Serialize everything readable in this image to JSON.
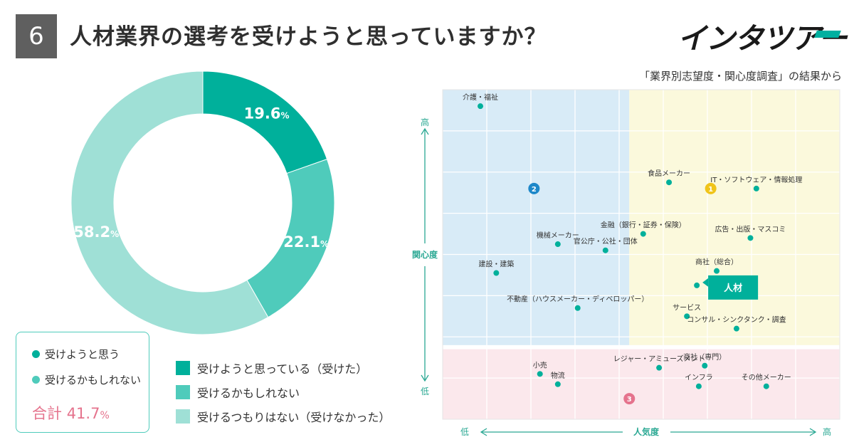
{
  "header": {
    "number": "6",
    "title": "人材業界の選考を受けようと思っていますか？",
    "logo_text": "インタツアー",
    "subtitle": "「業界別志望度・関心度調査」の結果から"
  },
  "summary_box": {
    "items": [
      {
        "label": "受けようと思う",
        "color": "#00b09b"
      },
      {
        "label": "受けるかもしれない",
        "color": "#4fcbbb"
      }
    ],
    "total_label": "合計",
    "total_value": "41.7",
    "total_unit": "%"
  },
  "chart_data": [
    {
      "type": "pie",
      "donut": true,
      "categories": [
        "受けようと思っている（受けた）",
        "受けるかもしれない",
        "受けるつもりはない（受けなかった）"
      ],
      "values": [
        19.6,
        22.1,
        58.2
      ],
      "colors": [
        "#00b09b",
        "#4fcbbb",
        "#9fe0d6"
      ],
      "value_unit": "%",
      "legend_position": "bottom"
    },
    {
      "type": "scatter",
      "xlabel": "人気度",
      "ylabel": "関心度",
      "x_low_label": "低",
      "x_high_label": "高",
      "y_low_label": "低",
      "y_high_label": "高",
      "xlim": [
        0,
        10
      ],
      "ylim": [
        0,
        8
      ],
      "grid": true,
      "zones": [
        {
          "id": "2",
          "x": [
            0,
            4.7
          ],
          "y": [
            1.8,
            8
          ],
          "color": "#d8ebf7",
          "badge_color": "#1e88c9",
          "badge_at": [
            2.3,
            5.6
          ]
        },
        {
          "id": "1",
          "x": [
            4.7,
            10
          ],
          "y": [
            1.8,
            8
          ],
          "color": "#fbf9dc",
          "badge_color": "#f0c419",
          "badge_at": [
            6.75,
            5.6
          ]
        },
        {
          "id": "3",
          "x": [
            0,
            10
          ],
          "y": [
            0,
            1.7
          ],
          "color": "#fbe8ec",
          "badge_color": "#e5738d",
          "badge_at": [
            4.7,
            0.5
          ]
        }
      ],
      "points": [
        {
          "label": "介護・福祉",
          "x": 0.95,
          "y": 7.6
        },
        {
          "label": "食品メーカー",
          "x": 5.7,
          "y": 5.75
        },
        {
          "label": "IT・ソフトウェア・情報処理",
          "x": 7.9,
          "y": 5.6
        },
        {
          "label": "金融（銀行・証券・保険）",
          "x": 5.05,
          "y": 4.5
        },
        {
          "label": "広告・出版・マスコミ",
          "x": 7.75,
          "y": 4.4
        },
        {
          "label": "機械メーカー",
          "x": 2.9,
          "y": 4.25
        },
        {
          "label": "官公庁・公社・団体",
          "x": 4.1,
          "y": 4.1
        },
        {
          "label": "商社（総合）",
          "x": 6.9,
          "y": 3.6
        },
        {
          "label": "建設・建築",
          "x": 1.35,
          "y": 3.55
        },
        {
          "label": "人材",
          "x": 6.4,
          "y": 3.25,
          "highlight": true
        },
        {
          "label": "不動産（ハウスメーカー・ディベロッパー）",
          "x": 3.4,
          "y": 2.7
        },
        {
          "label": "サービス",
          "x": 6.15,
          "y": 2.5
        },
        {
          "label": "コンサル・シンクタンク・調査",
          "x": 7.4,
          "y": 2.2
        },
        {
          "label": "レジャー・アミューズメント",
          "x": 5.45,
          "y": 1.25
        },
        {
          "label": "商社（専門）",
          "x": 6.6,
          "y": 1.3
        },
        {
          "label": "小売",
          "x": 2.45,
          "y": 1.1
        },
        {
          "label": "物流",
          "x": 2.9,
          "y": 0.85
        },
        {
          "label": "インフラ",
          "x": 6.45,
          "y": 0.8
        },
        {
          "label": "その他メーカー",
          "x": 8.15,
          "y": 0.8
        }
      ],
      "highlight_color": "#00b09b"
    }
  ]
}
